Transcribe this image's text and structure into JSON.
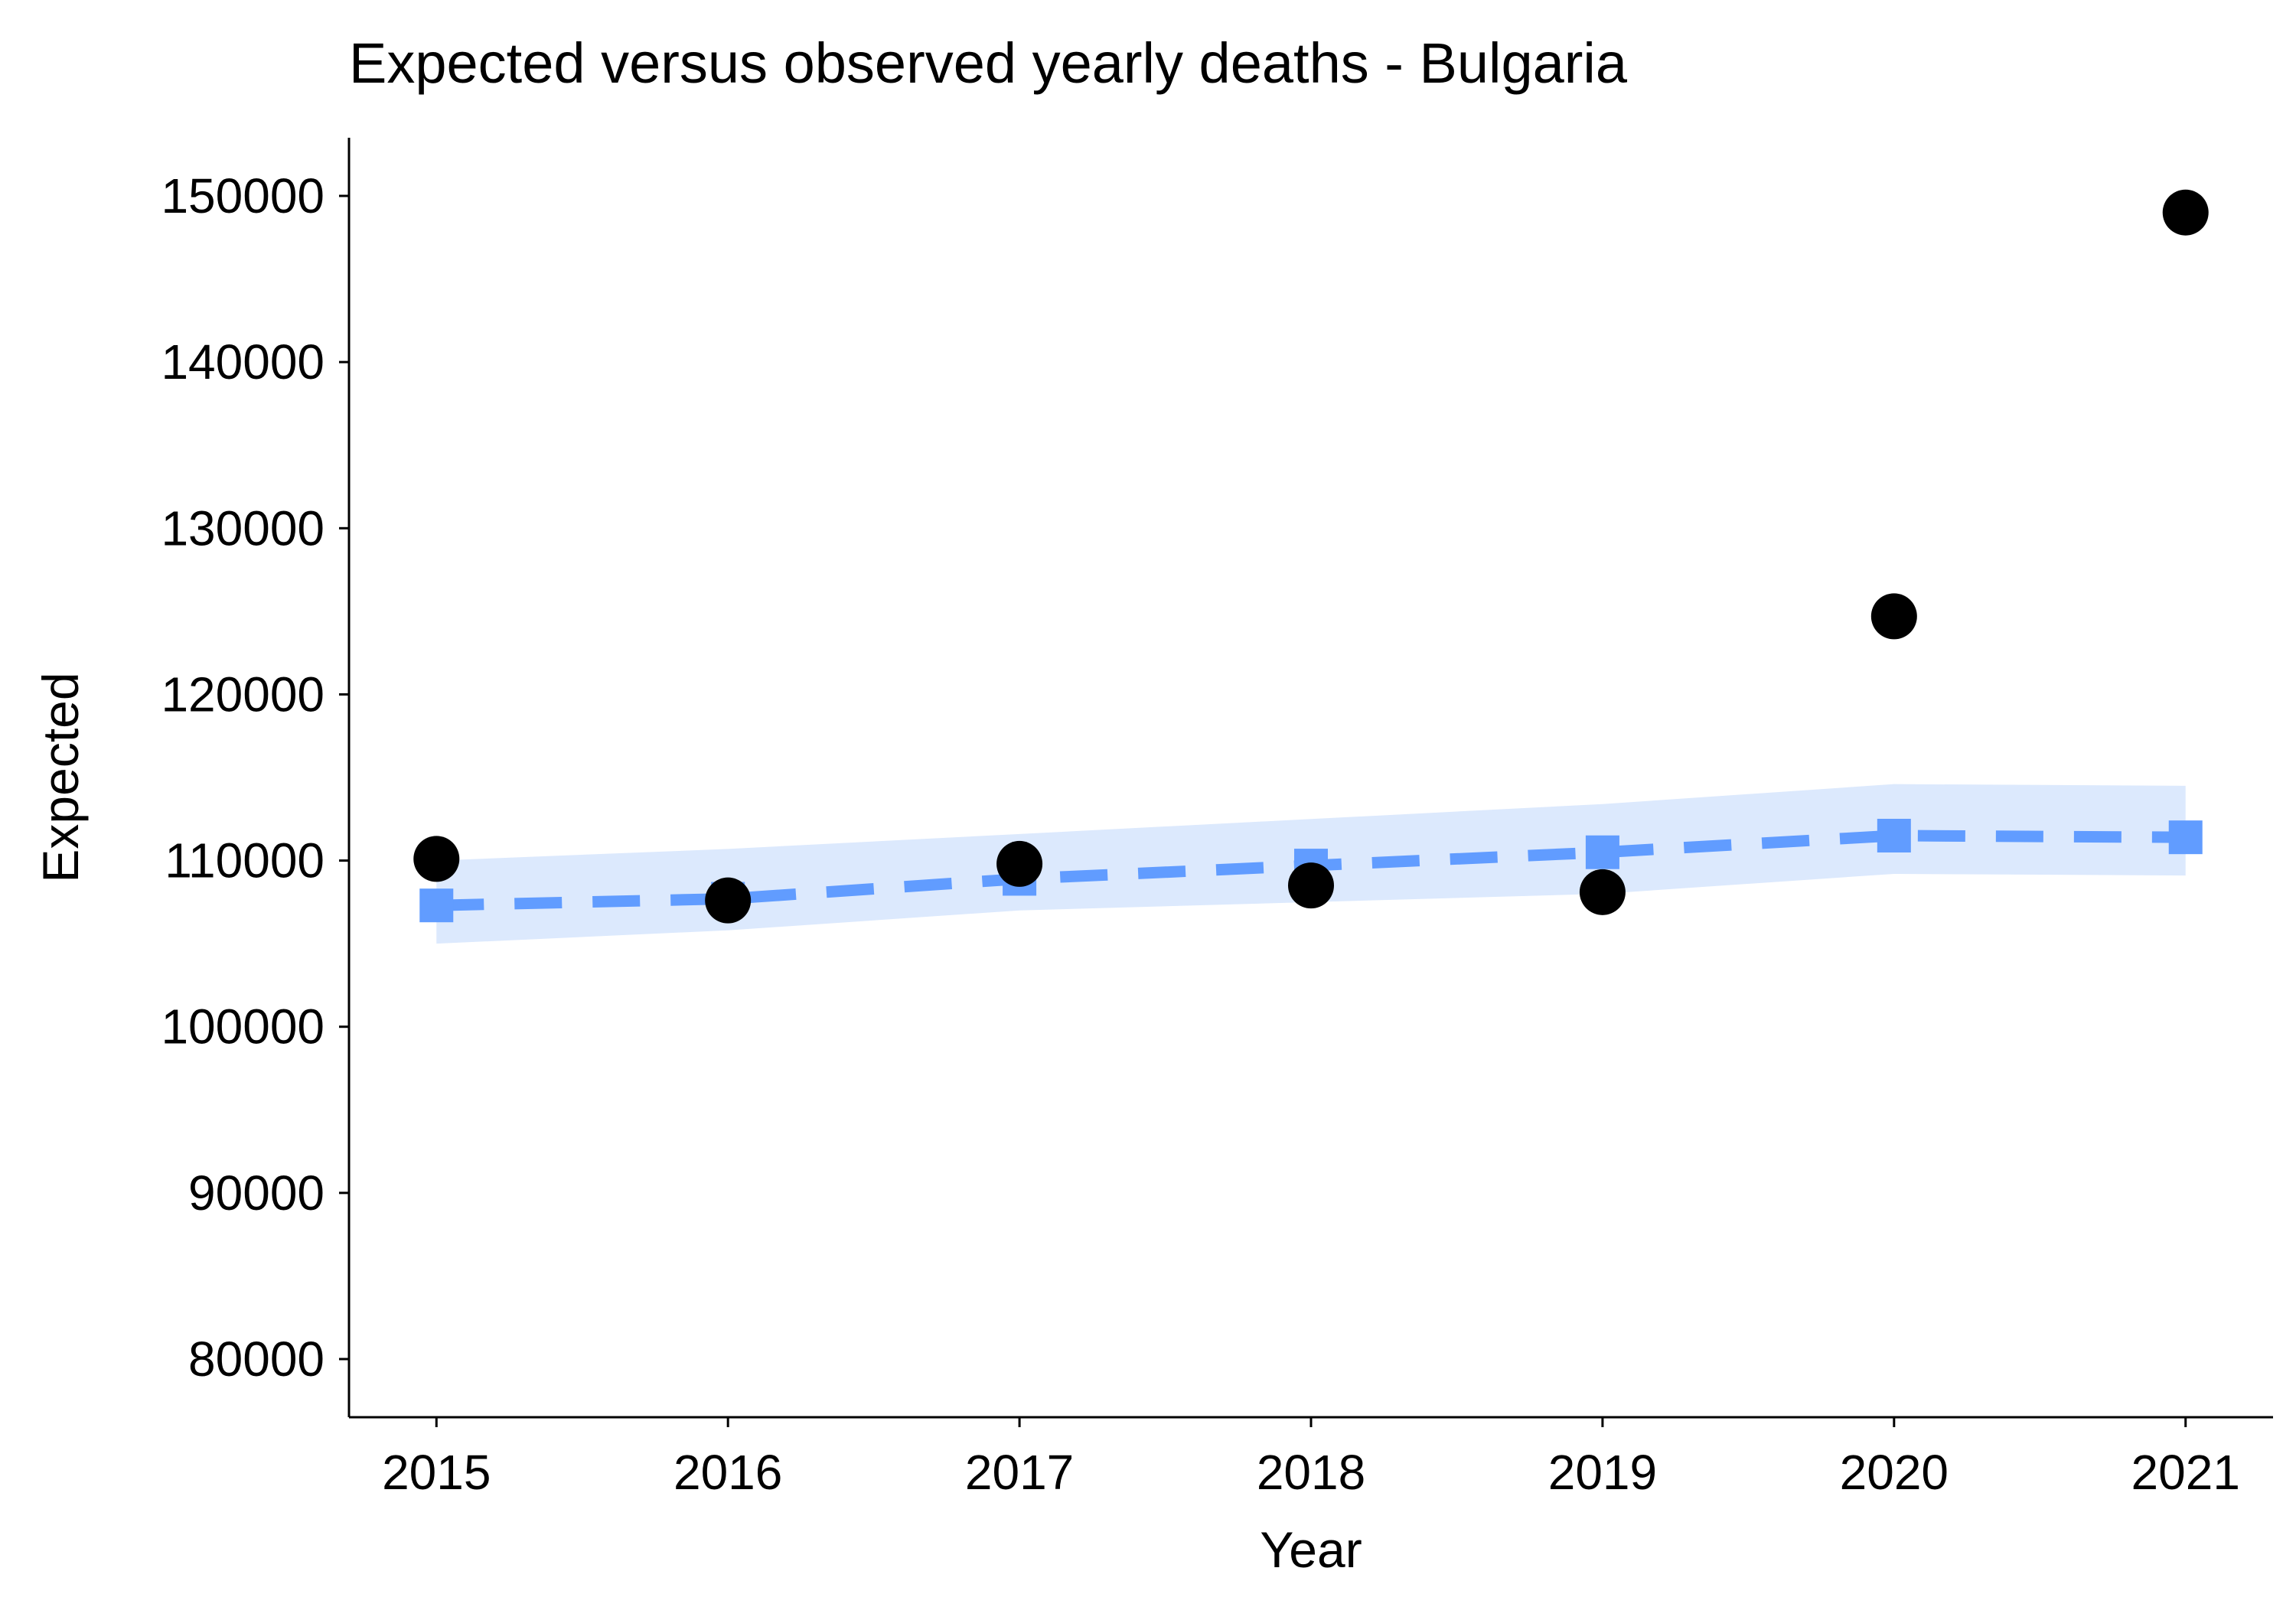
{
  "chart_data": {
    "type": "line",
    "title": "Expected versus observed yearly deaths - Bulgaria",
    "xlabel": "Year",
    "ylabel": "Expected",
    "x": [
      2015,
      2016,
      2017,
      2018,
      2019,
      2020,
      2021
    ],
    "xlim": [
      2014.7,
      2021.3
    ],
    "ylim": [
      76500,
      153500
    ],
    "yticks": [
      80000,
      90000,
      100000,
      110000,
      120000,
      130000,
      140000,
      150000
    ],
    "grid": false,
    "legend": "none",
    "series": [
      {
        "kind": "expected",
        "style": "dashed line with square markers",
        "color": "#619CFF",
        "values": [
          107300,
          107700,
          108900,
          109700,
          110500,
          111500,
          111400
        ]
      },
      {
        "kind": "expected_interval",
        "style": "ribbon",
        "color": "#DCE9FD",
        "lower": [
          105000,
          105800,
          107000,
          107500,
          108000,
          109200,
          109100
        ],
        "upper": [
          110000,
          110700,
          111600,
          112500,
          113400,
          114600,
          114500
        ]
      },
      {
        "kind": "observed",
        "style": "points",
        "color": "#000000",
        "values": [
          110100,
          107600,
          109800,
          108500,
          108100,
          124700,
          149000
        ]
      }
    ]
  }
}
